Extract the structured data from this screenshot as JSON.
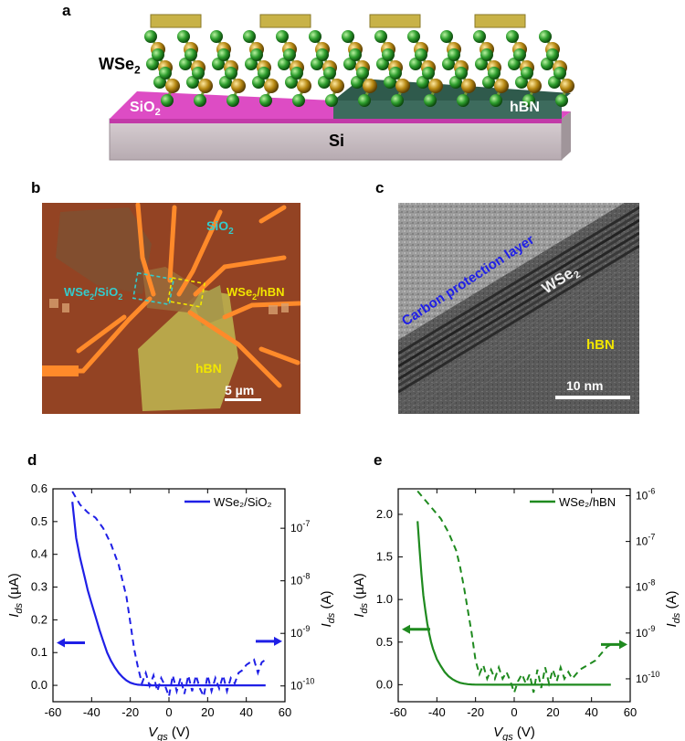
{
  "figure": {
    "panels": [
      {
        "label": "a"
      },
      {
        "label": "b"
      },
      {
        "label": "c"
      },
      {
        "label": "d"
      },
      {
        "label": "e"
      }
    ],
    "schematic": {
      "wse2_label": "WSe",
      "wse2_sub": "2",
      "sio2_label": "SiO",
      "sio2_sub": "2",
      "hbn_label": "hBN",
      "si_label": "Si"
    },
    "optical": {
      "sio2_label": "SiO",
      "sio2_sub": "2",
      "wse2_sio2_label_a": "WSe",
      "wse2_sio2_label_b": "/SiO",
      "wse2_hbn_label_a": "WSe",
      "wse2_hbn_label_b": "/hBN",
      "sub": "2",
      "hbn_label": "hBN",
      "scale_label": "5 µm"
    },
    "tem": {
      "carbon_label": "Carbon protection layer",
      "wse2_label": "WSe",
      "wse2_sub": "2",
      "hbn_label": "hBN",
      "scale_label": "10 nm"
    }
  },
  "colors": {
    "blue": "#1f1fe6",
    "green": "#1f8a1f",
    "cyan": "#33cccc",
    "yellow": "#f2e600",
    "magenta": "#e040c8",
    "hbn_dark": "#2f4f45"
  },
  "chart_data": [
    {
      "type": "line",
      "panel": "d",
      "legend": "WSe₂/SiO₂",
      "xlabel": "V",
      "xlabel_sub": "gs",
      "xunit": " (V)",
      "ylabel_left": "I",
      "ylabel_left_sub": "ds",
      "ylabel_left_unit": " (µA)",
      "ylabel_right": "I",
      "ylabel_right_sub": "ds",
      "ylabel_right_unit": " (A)",
      "xlim": [
        -60,
        60
      ],
      "xticks": [
        -60,
        -40,
        -20,
        0,
        20,
        40,
        60
      ],
      "ylim_left": [
        -0.05,
        0.6
      ],
      "yticks_left": [
        "0.0",
        "0.1",
        "0.2",
        "0.3",
        "0.4",
        "0.5",
        "0.6"
      ],
      "yticks_left_values": [
        0.0,
        0.1,
        0.2,
        0.3,
        0.4,
        0.5,
        0.6
      ],
      "yticks_right_labels": [
        "10",
        "10",
        "10",
        "10"
      ],
      "yticks_right_exps": [
        "-10",
        "-9",
        "-8",
        "-7"
      ],
      "yticks_right_values": [
        1e-10,
        1e-09,
        1e-08,
        1e-07
      ],
      "ylim_right_log": [
        -10.3,
        -6.25
      ],
      "linear_series": {
        "x": [
          -50,
          -48,
          -46,
          -44,
          -42,
          -40,
          -38,
          -36,
          -34,
          -32,
          -30,
          -28,
          -26,
          -24,
          -22,
          -20,
          -18,
          -16,
          -14,
          -10,
          0,
          10,
          20,
          30,
          40,
          50
        ],
        "y": [
          0.56,
          0.45,
          0.39,
          0.34,
          0.29,
          0.25,
          0.21,
          0.17,
          0.135,
          0.1,
          0.075,
          0.055,
          0.038,
          0.025,
          0.015,
          0.008,
          0.004,
          0.002,
          0.001,
          0.0,
          0.0,
          0.0,
          0.0,
          0.0,
          0.0,
          0.0
        ]
      },
      "log_series": {
        "x": [
          -50,
          -46,
          -42,
          -38,
          -34,
          -30,
          -26,
          -22,
          -20,
          -18,
          -16,
          -14,
          -12,
          -10,
          -8,
          -6,
          -4,
          -2,
          0,
          2,
          4,
          6,
          8,
          10,
          12,
          14,
          16,
          18,
          20,
          22,
          24,
          26,
          28,
          30,
          32,
          34,
          36,
          38,
          40,
          42,
          44,
          46,
          48,
          50
        ],
        "log_y": [
          -6.3,
          -6.55,
          -6.7,
          -6.8,
          -7.0,
          -7.3,
          -7.7,
          -8.3,
          -8.8,
          -9.3,
          -9.65,
          -9.95,
          -9.75,
          -10.0,
          -9.8,
          -10.1,
          -9.85,
          -10.0,
          -10.2,
          -9.8,
          -10.1,
          -9.85,
          -10.15,
          -9.8,
          -10.1,
          -9.8,
          -10.05,
          -10.2,
          -9.8,
          -10.1,
          -9.85,
          -10.05,
          -9.8,
          -10.1,
          -9.85,
          -9.95,
          -9.75,
          -9.7,
          -9.6,
          -9.55,
          -9.5,
          -9.75,
          -9.55,
          -9.5
        ]
      },
      "arrow_left_at_y": 0.13,
      "arrow_right_at_logy": -9.15
    },
    {
      "type": "line",
      "panel": "e",
      "legend": "WSe₂/hBN",
      "xlabel": "V",
      "xlabel_sub": "gs",
      "xunit": " (V)",
      "ylabel_left": "I",
      "ylabel_left_sub": "ds",
      "ylabel_left_unit": " (µA)",
      "ylabel_right": "I",
      "ylabel_right_sub": "ds",
      "ylabel_right_unit": " (A)",
      "xlim": [
        -60,
        60
      ],
      "xticks": [
        -60,
        -40,
        -20,
        0,
        20,
        40,
        60
      ],
      "ylim_left": [
        -0.2,
        2.3
      ],
      "yticks_left": [
        "0.0",
        "0.5",
        "1.0",
        "1.5",
        "2.0"
      ],
      "yticks_left_values": [
        0.0,
        0.5,
        1.0,
        1.5,
        2.0
      ],
      "yticks_right_labels": [
        "10",
        "10",
        "10",
        "10",
        "10"
      ],
      "yticks_right_exps": [
        "-10",
        "-9",
        "-8",
        "-7",
        "-6"
      ],
      "yticks_right_values": [
        1e-10,
        1e-09,
        1e-08,
        1e-07,
        1e-06
      ],
      "ylim_right_log": [
        -10.5,
        -5.85
      ],
      "linear_series": {
        "x": [
          -50,
          -49,
          -48,
          -47,
          -46,
          -45,
          -44,
          -43,
          -42,
          -40,
          -38,
          -36,
          -34,
          -32,
          -30,
          -28,
          -26,
          -24,
          -22,
          -20,
          -10,
          0,
          10,
          20,
          30,
          40,
          50
        ],
        "y": [
          1.92,
          1.6,
          1.3,
          1.05,
          0.88,
          0.72,
          0.6,
          0.5,
          0.42,
          0.3,
          0.22,
          0.15,
          0.1,
          0.065,
          0.04,
          0.022,
          0.012,
          0.006,
          0.003,
          0.001,
          0.0,
          0.0,
          0.0,
          0.0,
          0.0,
          0.0,
          0.0
        ]
      },
      "log_series": {
        "x": [
          -50,
          -46,
          -42,
          -38,
          -34,
          -30,
          -28,
          -26,
          -24,
          -22,
          -20,
          -18,
          -16,
          -14,
          -12,
          -10,
          -8,
          -6,
          -4,
          -2,
          0,
          2,
          4,
          6,
          8,
          10,
          12,
          14,
          16,
          18,
          20,
          22,
          24,
          26,
          28,
          30,
          32,
          34,
          36,
          38,
          40,
          42,
          44,
          46,
          48,
          50
        ],
        "log_y": [
          -5.9,
          -6.1,
          -6.3,
          -6.5,
          -6.8,
          -7.2,
          -7.55,
          -8.0,
          -8.5,
          -9.0,
          -9.6,
          -9.9,
          -9.7,
          -10.0,
          -9.8,
          -10.0,
          -9.75,
          -10.0,
          -9.85,
          -10.05,
          -10.3,
          -10.05,
          -9.9,
          -10.1,
          -9.9,
          -10.3,
          -9.8,
          -10.2,
          -9.75,
          -10.1,
          -9.8,
          -10.05,
          -9.75,
          -10.0,
          -9.85,
          -10.0,
          -9.9,
          -9.8,
          -9.75,
          -9.7,
          -9.65,
          -9.6,
          -9.5,
          -9.4,
          -9.3,
          -9.25
        ]
      },
      "arrow_left_at_y": 0.65,
      "arrow_right_at_logy": -9.25
    }
  ]
}
